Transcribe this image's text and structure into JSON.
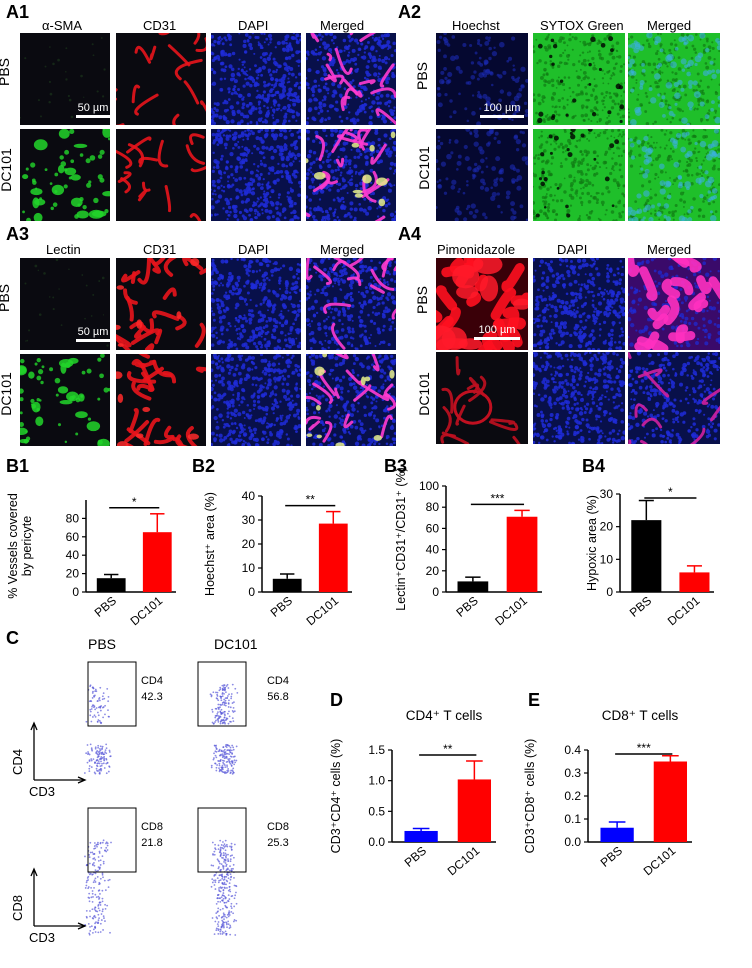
{
  "labels": {
    "A1": "A1",
    "A2": "A2",
    "A3": "A3",
    "A4": "A4",
    "B1": "B1",
    "B2": "B2",
    "B3": "B3",
    "B4": "B4",
    "C": "C",
    "D": "D",
    "E": "E"
  },
  "row_labels": {
    "pbs": "PBS",
    "dc101": "DC101"
  },
  "a1": {
    "columns": [
      "α-SMA",
      "CD31",
      "DAPI",
      "Merged"
    ],
    "scale": "50 µm"
  },
  "a2": {
    "columns": [
      "Hoechst",
      "SYTOX Green",
      "Merged"
    ],
    "scale": "100 µm"
  },
  "a3": {
    "columns": [
      "Lectin",
      "CD31",
      "DAPI",
      "Merged"
    ],
    "scale": "50 µm"
  },
  "a4": {
    "columns": [
      "Pimonidazole",
      "DAPI",
      "Merged"
    ],
    "scale": "100 µm"
  },
  "colors": {
    "micro_bg": "#0a0a10",
    "dapi": "#1e2bd8",
    "sytox": "#1fbf2a",
    "cd31": "#e8141c",
    "sma": "#22d62a",
    "pbs_bar": "#000000",
    "dc101_bar": "#ff0000",
    "blue_bar": "#0000ff"
  },
  "flow": {
    "column_titles": [
      "PBS",
      "DC101"
    ],
    "gates": [
      {
        "marker": "CD4",
        "pbs": "42.3",
        "dc101": "56.8"
      },
      {
        "marker": "CD8",
        "pbs": "21.8",
        "dc101": "25.3"
      }
    ],
    "axis_y_top": "CD4",
    "axis_y_bottom": "CD8",
    "axis_x": "CD3"
  },
  "chart_data": [
    {
      "id": "B1",
      "type": "bar",
      "categories": [
        "PBS",
        "DC101"
      ],
      "values": [
        15,
        65
      ],
      "errors": [
        4,
        20
      ],
      "ylabel": "% Vessels covered by pericyte",
      "ylim": [
        0,
        100
      ],
      "yticks": [
        "0",
        "20",
        "40",
        "60",
        "80"
      ],
      "significance": "*",
      "colors": [
        "#000000",
        "#ff0000"
      ]
    },
    {
      "id": "B2",
      "type": "bar",
      "categories": [
        "PBS",
        "DC101"
      ],
      "values": [
        5.5,
        28.5
      ],
      "errors": [
        2,
        5
      ],
      "ylabel": "Hoechst⁺ area (%)",
      "ylim": [
        0,
        40
      ],
      "yticks": [
        "0",
        "10",
        "20",
        "30",
        "40"
      ],
      "significance": "**",
      "colors": [
        "#000000",
        "#ff0000"
      ]
    },
    {
      "id": "B3",
      "type": "bar",
      "categories": [
        "PBS",
        "DC101"
      ],
      "values": [
        10,
        71
      ],
      "errors": [
        4,
        6
      ],
      "ylabel": "Lectin⁺CD31⁺/CD31⁺ (%)",
      "ylim": [
        0,
        100
      ],
      "yticks": [
        "0",
        "20",
        "40",
        "60",
        "80",
        "100"
      ],
      "significance": "***",
      "colors": [
        "#000000",
        "#ff0000"
      ]
    },
    {
      "id": "B4",
      "type": "bar",
      "categories": [
        "PBS",
        "DC101"
      ],
      "values": [
        22,
        6
      ],
      "errors": [
        6,
        2
      ],
      "ylabel": "Hypoxic area (%)",
      "ylim": [
        0,
        30
      ],
      "yticks": [
        "0",
        "10",
        "20",
        "30"
      ],
      "significance": "*",
      "colors": [
        "#000000",
        "#ff0000"
      ]
    },
    {
      "id": "D",
      "type": "bar",
      "title": "CD4⁺ T cells",
      "categories": [
        "PBS",
        "DC101"
      ],
      "values": [
        0.18,
        1.02
      ],
      "errors": [
        0.04,
        0.3
      ],
      "ylabel": "CD3⁺CD4⁺ cells (%)",
      "ylim": [
        0,
        1.5
      ],
      "yticks": [
        "0.0",
        "0.5",
        "1.0",
        "1.5"
      ],
      "significance": "**",
      "colors": [
        "#0000ff",
        "#ff0000"
      ]
    },
    {
      "id": "E",
      "type": "bar",
      "title": "CD8⁺ T cells",
      "categories": [
        "PBS",
        "DC101"
      ],
      "values": [
        0.062,
        0.35
      ],
      "errors": [
        0.025,
        0.025
      ],
      "ylabel": "CD3⁺CD8⁺ cells (%)",
      "ylim": [
        0,
        0.4
      ],
      "yticks": [
        "0.0",
        "0.1",
        "0.2",
        "0.3",
        "0.4"
      ],
      "significance": "***",
      "colors": [
        "#0000ff",
        "#ff0000"
      ]
    }
  ]
}
